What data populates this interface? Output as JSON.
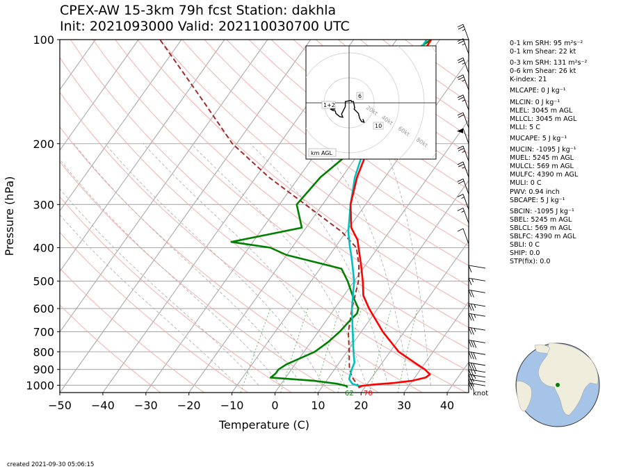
{
  "title_line1": "CPEX-AW 15-3km  79h fcst  Station: dakhla",
  "title_line2": "Init: 2021093000  Valid: 202110030700 UTC",
  "created": "created 2021-09-30 05:06:15",
  "indices": [
    {
      "label": "0-1 km SRH: 95 m²s⁻²"
    },
    {
      "label": "0-1 km Shear: 22 kt"
    },
    {
      "gap": true
    },
    {
      "label": "0-3 km SRH: 131 m²s⁻²"
    },
    {
      "label": "0-6 km Shear: 26 kt"
    },
    {
      "label": "K-index: 21"
    },
    {
      "gap": true
    },
    {
      "label": "MLCAPE: 0 J kg⁻¹"
    },
    {
      "gap": true
    },
    {
      "label": "MLCIN: 0 J kg⁻¹"
    },
    {
      "label": "MLEL: 3045 m AGL"
    },
    {
      "label": "MLLCL: 3045 m AGL"
    },
    {
      "label": "MLLI: 5 C"
    },
    {
      "gap": true
    },
    {
      "label": "MUCAPE: 5 J kg⁻¹"
    },
    {
      "gap": true
    },
    {
      "label": "MUCIN: -1095 J kg⁻¹"
    },
    {
      "label": "MUEL: 5245 m AGL"
    },
    {
      "label": "MULCL: 569 m AGL"
    },
    {
      "label": "MULFC: 4390 m AGL"
    },
    {
      "label": "MULI: 0 C"
    },
    {
      "label": "PWV: 0.94 inch"
    },
    {
      "label": "SBCAPE: 5 J kg⁻¹"
    },
    {
      "gap": true
    },
    {
      "label": "SBCIN: -1095 J kg⁻¹"
    },
    {
      "label": "SBEL: 5245 m AGL"
    },
    {
      "label": "SBLCL: 569 m AGL"
    },
    {
      "label": "SBLFC: 4390 m AGL"
    },
    {
      "label": "SBLI: 0 C"
    },
    {
      "label": "SHIP: 0.0"
    },
    {
      "label": "STP(fix): 0.0"
    }
  ],
  "chart_data": {
    "type": "line",
    "subtype": "skew-t log-p",
    "xlabel": "Temperature (C)",
    "ylabel": "Pressure (hPa)",
    "xlim": [
      -50,
      45
    ],
    "ylim": [
      1050,
      100
    ],
    "yscale": "log",
    "x_ticks": [
      -50,
      -40,
      -30,
      -20,
      -10,
      0,
      10,
      20,
      30,
      40
    ],
    "y_ticks": [
      1000,
      900,
      800,
      700,
      600,
      500,
      400,
      300,
      200,
      100
    ],
    "grid": true,
    "surface_labels": {
      "dewpoint": "62",
      "temperature": "70"
    },
    "wind_unit_label": "knot",
    "series": [
      {
        "role": "temperature",
        "color": "#ff0000",
        "points": [
          [
            1015,
            18.5
          ],
          [
            1005,
            19
          ],
          [
            995,
            21.5
          ],
          [
            985,
            26
          ],
          [
            970,
            30
          ],
          [
            950,
            32.5
          ],
          [
            930,
            33
          ],
          [
            900,
            31
          ],
          [
            860,
            27.5
          ],
          [
            800,
            22
          ],
          [
            700,
            15
          ],
          [
            600,
            8
          ],
          [
            550,
            4.5
          ],
          [
            500,
            2
          ],
          [
            450,
            -1
          ],
          [
            400,
            -4.5
          ],
          [
            380,
            -6
          ],
          [
            350,
            -9.5
          ],
          [
            300,
            -13.5
          ],
          [
            250,
            -16.5
          ],
          [
            200,
            -19
          ],
          [
            150,
            -21
          ],
          [
            120,
            -21.5
          ],
          [
            100,
            -22
          ]
        ]
      },
      {
        "role": "parcel",
        "color": "#00c0c0",
        "points": [
          [
            1010,
            19
          ],
          [
            990,
            16.5
          ],
          [
            960,
            15
          ],
          [
            930,
            14.5
          ],
          [
            900,
            14
          ],
          [
            860,
            13.5
          ],
          [
            800,
            11.5
          ],
          [
            700,
            8
          ],
          [
            600,
            4
          ],
          [
            500,
            0
          ],
          [
            450,
            -3
          ],
          [
            420,
            -5
          ],
          [
            400,
            -6.5
          ],
          [
            360,
            -9.5
          ],
          [
            300,
            -13.5
          ],
          [
            250,
            -17
          ],
          [
            200,
            -20
          ],
          [
            150,
            -22
          ],
          [
            120,
            -23
          ],
          [
            100,
            -23
          ]
        ]
      },
      {
        "role": "dewpoint",
        "color": "#008000",
        "points": [
          [
            1015,
            16
          ],
          [
            1005,
            15.5
          ],
          [
            990,
            13
          ],
          [
            970,
            7
          ],
          [
            950,
            -3.5
          ],
          [
            925,
            -3
          ],
          [
            900,
            -3
          ],
          [
            870,
            -2
          ],
          [
            800,
            2.5
          ],
          [
            750,
            4
          ],
          [
            700,
            5
          ],
          [
            650,
            5.5
          ],
          [
            620,
            6
          ],
          [
            600,
            5.5
          ],
          [
            550,
            2
          ],
          [
            500,
            -1.5
          ],
          [
            460,
            -5
          ],
          [
            420,
            -20
          ],
          [
            400,
            -25
          ],
          [
            385,
            -35
          ],
          [
            350,
            -21
          ],
          [
            300,
            -26
          ],
          [
            250,
            -25
          ],
          [
            210,
            -22
          ],
          [
            190,
            -26
          ],
          [
            175,
            -33
          ],
          [
            160,
            -29
          ],
          [
            140,
            -28
          ],
          [
            120,
            -27
          ],
          [
            100,
            -22
          ]
        ]
      },
      {
        "role": "parcel_path",
        "color": "#a52a2a",
        "style": "dashed",
        "points": [
          [
            1015,
            19
          ],
          [
            990,
            17.5
          ],
          [
            950,
            15.5
          ],
          [
            900,
            13.5
          ],
          [
            850,
            12
          ],
          [
            800,
            10.5
          ],
          [
            700,
            7
          ],
          [
            600,
            4
          ],
          [
            500,
            1
          ],
          [
            450,
            -1.5
          ],
          [
            400,
            -5
          ],
          [
            360,
            -11
          ],
          [
            300,
            -24
          ],
          [
            250,
            -37
          ],
          [
            200,
            -51
          ],
          [
            150,
            -65
          ],
          [
            120,
            -76
          ],
          [
            100,
            -85
          ]
        ]
      }
    ],
    "wind_barbs": [
      {
        "p": 100,
        "speed_kt": 25
      },
      {
        "p": 110,
        "speed_kt": 25
      },
      {
        "p": 125,
        "speed_kt": 25
      },
      {
        "p": 140,
        "speed_kt": 25
      },
      {
        "p": 160,
        "speed_kt": 25
      },
      {
        "p": 180,
        "speed_kt": 20
      },
      {
        "p": 200,
        "speed_kt": 50
      },
      {
        "p": 225,
        "speed_kt": 25
      },
      {
        "p": 250,
        "speed_kt": 25
      },
      {
        "p": 280,
        "speed_kt": 20
      },
      {
        "p": 310,
        "speed_kt": 15
      },
      {
        "p": 340,
        "speed_kt": 15
      },
      {
        "p": 390,
        "speed_kt": 10
      },
      {
        "p": 450,
        "speed_kt": 10
      },
      {
        "p": 490,
        "speed_kt": 15
      },
      {
        "p": 530,
        "speed_kt": 20
      },
      {
        "p": 580,
        "speed_kt": 25
      },
      {
        "p": 620,
        "speed_kt": 25
      },
      {
        "p": 680,
        "speed_kt": 25
      },
      {
        "p": 740,
        "speed_kt": 30
      },
      {
        "p": 800,
        "speed_kt": 30
      },
      {
        "p": 860,
        "speed_kt": 30
      },
      {
        "p": 900,
        "speed_kt": 25
      },
      {
        "p": 930,
        "speed_kt": 25
      },
      {
        "p": 960,
        "speed_kt": 20
      },
      {
        "p": 985,
        "speed_kt": 20
      }
    ],
    "hodograph": {
      "ring_labels": [
        "20kt",
        "40kt",
        "60kt",
        "80kt"
      ],
      "height_labels": [
        "1+2",
        "6",
        "10"
      ],
      "footer_label": "km AGL",
      "points": [
        [
          -22,
          -10
        ],
        [
          -30,
          -10
        ],
        [
          -26,
          -12
        ],
        [
          -22,
          -13
        ],
        [
          -21,
          -17
        ],
        [
          -15,
          -22
        ],
        [
          -10,
          -23
        ],
        [
          -12,
          -18
        ],
        [
          -6,
          -6
        ],
        [
          -6,
          2
        ],
        [
          3,
          4
        ],
        [
          4,
          2
        ],
        [
          7,
          2
        ],
        [
          9,
          -8
        ],
        [
          8,
          -10
        ],
        [
          11,
          -13
        ],
        [
          15,
          -17
        ],
        [
          17,
          -25
        ],
        [
          20,
          -30
        ],
        [
          24,
          -31
        ],
        [
          22,
          -26
        ]
      ]
    }
  }
}
